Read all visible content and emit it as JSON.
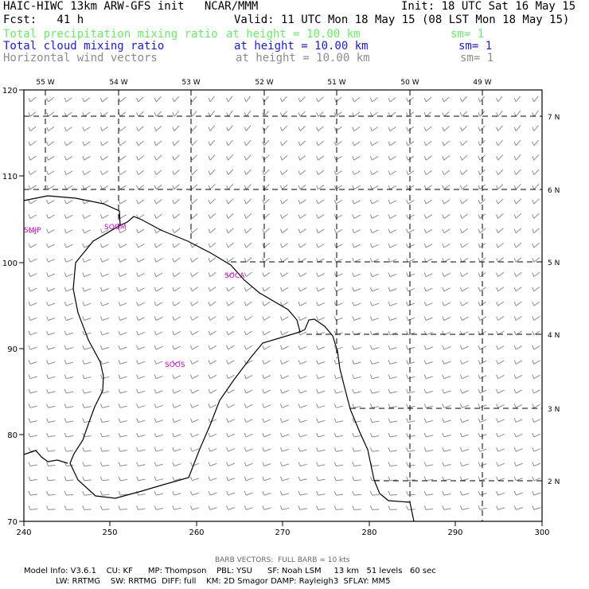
{
  "header": {
    "title": "HAIC-HIWC 13km ARW-GFS init   NCAR/MMM",
    "init": "Init: 18 UTC Sat 16 May 15",
    "fcst": "Fcst:   41 h",
    "valid": "Valid: 11 UTC Mon 18 May 15 (08 LST Mon 18 May 15)"
  },
  "fields": [
    {
      "name": "Total precipitation mixing ratio",
      "height": "at height = 10.00 km",
      "sm": "sm= 1",
      "color": "#66ee66"
    },
    {
      "name": "Total cloud mixing ratio",
      "height": "at height = 10.00 km",
      "sm": "sm= 1",
      "color": "#1a1ad9"
    },
    {
      "name": "Horizontal wind vectors",
      "height": "at height = 10.00 km",
      "sm": "sm= 1",
      "color": "#8c8c8c"
    }
  ],
  "map": {
    "lon_labels": [
      "55 W",
      "54 W",
      "53 W",
      "52 W",
      "51 W",
      "50 W",
      "49 W"
    ],
    "lat_labels": [
      "7 N",
      "6 N",
      "5 N",
      "4 N",
      "3 N",
      "2 N"
    ],
    "x_ticks": [
      "240",
      "250",
      "260",
      "270",
      "280",
      "290",
      "300"
    ],
    "y_ticks": [
      "120",
      "110",
      "100",
      "90",
      "80",
      "70"
    ],
    "stations": [
      "SMJP",
      "SOGM",
      "SOCA",
      "SOOS"
    ],
    "station_color": "#cc00cc",
    "barb_color": "#8c8c8c"
  },
  "footer": {
    "barb_note": "BARB VECTORS:  FULL BARB = 10 kts",
    "model_line1": "Model Info: V3.6.1    CU: KF      MP: Thompson    PBL: YSU      SF: Noah LSM     13 km   51 levels   60 sec",
    "model_line2": "LW: RRTMG    SW: RRTMG  DIFF: full    KM: 2D Smagor DAMP: Rayleigh3  SFLAY: MM5"
  }
}
